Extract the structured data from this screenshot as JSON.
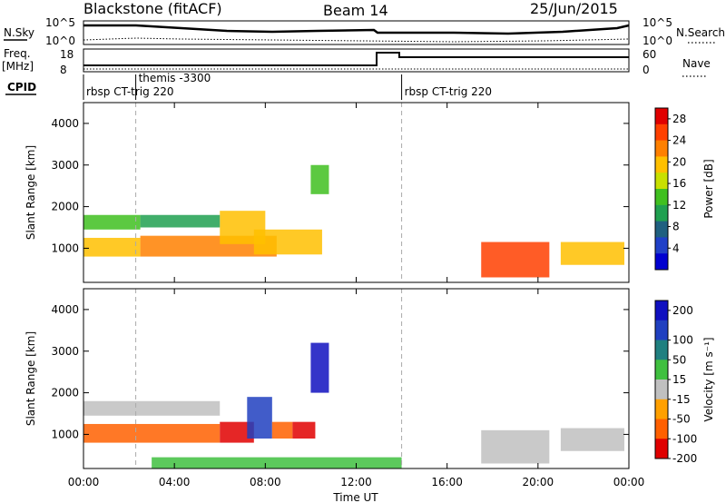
{
  "header": {
    "station": "Blackstone (fitACF)",
    "beam": "Beam 14",
    "date": "25/Jun/2015"
  },
  "top_panels": {
    "nsky_label": "N.Sky",
    "nsky_ticks": [
      "10^5",
      "10^0"
    ],
    "nsearch_label": "N.Search",
    "nsearch_ticks": [
      "10^5",
      "10^0"
    ],
    "freq_label": "Freq.",
    "freq_unit": "[MHz]",
    "freq_ticks": [
      "18",
      "8"
    ],
    "nave_label": "Nave",
    "nave_ticks": [
      "60",
      "0"
    ],
    "cpid_label": "CPID",
    "cpid_segments": [
      {
        "label": "rbsp CT-trig 220",
        "start_hour": 0.0
      },
      {
        "label": "themis -3300",
        "start_hour": 2.3
      },
      {
        "label": "rbsp CT-trig 220",
        "start_hour": 14.0
      }
    ]
  },
  "chart_data": [
    {
      "type": "heatmap",
      "name": "Power",
      "ylabel": "Slant Range [km]",
      "ylim": [
        180,
        4500
      ],
      "yticks": [
        "1000",
        "2000",
        "3000",
        "4000"
      ],
      "ytick_values": [
        1000,
        2000,
        3000,
        4000
      ],
      "xlim_hours": [
        0,
        24
      ],
      "colorbar": {
        "label": "Power [dB]",
        "ticks": [
          "4",
          "8",
          "12",
          "16",
          "20",
          "24",
          "28"
        ],
        "tick_values": [
          4,
          8,
          12,
          16,
          20,
          24,
          28
        ],
        "range": [
          0,
          30
        ],
        "colors": [
          "#0000d0",
          "#2040c8",
          "#206080",
          "#20a050",
          "#40c020",
          "#c8e000",
          "#ffc000",
          "#ff8000",
          "#ff4000",
          "#e00000"
        ]
      },
      "regions": [
        {
          "t": [
            0.0,
            2.5
          ],
          "r": [
            1450,
            1800
          ],
          "v": 14
        },
        {
          "t": [
            0.0,
            2.5
          ],
          "r": [
            800,
            1250
          ],
          "v": 19
        },
        {
          "t": [
            2.5,
            8.5
          ],
          "r": [
            800,
            1300
          ],
          "v": 22
        },
        {
          "t": [
            6.0,
            8.0
          ],
          "r": [
            1100,
            1900
          ],
          "v": 20
        },
        {
          "t": [
            7.5,
            10.5
          ],
          "r": [
            850,
            1450
          ],
          "v": 18
        },
        {
          "t": [
            2.5,
            6.0
          ],
          "r": [
            1500,
            1800
          ],
          "v": 10
        },
        {
          "t": [
            10.0,
            10.8
          ],
          "r": [
            2300,
            3000
          ],
          "v": 12
        },
        {
          "t": [
            17.5,
            20.5
          ],
          "r": [
            300,
            1150
          ],
          "v": 24
        },
        {
          "t": [
            21.0,
            23.8
          ],
          "r": [
            600,
            1150
          ],
          "v": 20
        }
      ]
    },
    {
      "type": "heatmap",
      "name": "Velocity",
      "ylabel": "Slant Range [km]",
      "ylim": [
        180,
        4500
      ],
      "yticks": [
        "1000",
        "2000",
        "3000",
        "4000"
      ],
      "ytick_values": [
        1000,
        2000,
        3000,
        4000
      ],
      "xlim_hours": [
        0,
        24
      ],
      "colorbar": {
        "label": "Velocity [m s⁻¹]",
        "ticks": [
          "200",
          "100",
          "50",
          "15",
          "-15",
          "-50",
          "-100",
          "-200"
        ],
        "tick_values": [
          200,
          100,
          50,
          15,
          -15,
          -50,
          -100,
          -200
        ],
        "colors": [
          "#1010c0",
          "#2040c0",
          "#208080",
          "#40c040",
          "#c0c0c0",
          "#ffa000",
          "#ff6000",
          "#e00000"
        ]
      },
      "regions": [
        {
          "t": [
            0.0,
            6.0
          ],
          "r": [
            1450,
            1800
          ],
          "v": 0
        },
        {
          "t": [
            0.0,
            6.0
          ],
          "r": [
            800,
            1250
          ],
          "v": -60
        },
        {
          "t": [
            6.0,
            7.5
          ],
          "r": [
            800,
            1300
          ],
          "v": -120
        },
        {
          "t": [
            7.2,
            8.3
          ],
          "r": [
            900,
            1900
          ],
          "v": 150
        },
        {
          "t": [
            8.3,
            9.2
          ],
          "r": [
            900,
            1300
          ],
          "v": -60
        },
        {
          "t": [
            9.2,
            10.2
          ],
          "r": [
            900,
            1300
          ],
          "v": -180
        },
        {
          "t": [
            10.0,
            10.8
          ],
          "r": [
            2000,
            3200
          ],
          "v": 200
        },
        {
          "t": [
            3.0,
            14.0
          ],
          "r": [
            180,
            450
          ],
          "v": 40
        },
        {
          "t": [
            17.5,
            20.5
          ],
          "r": [
            300,
            1100
          ],
          "v": 0
        },
        {
          "t": [
            21.0,
            23.8
          ],
          "r": [
            600,
            1150
          ],
          "v": 0
        }
      ]
    }
  ],
  "xaxis": {
    "ticks": [
      "00:00",
      "04:00",
      "08:00",
      "12:00",
      "16:00",
      "20:00",
      "00:00"
    ],
    "tick_hours": [
      0,
      4,
      8,
      12,
      16,
      20,
      24
    ],
    "label": "Time UT"
  }
}
